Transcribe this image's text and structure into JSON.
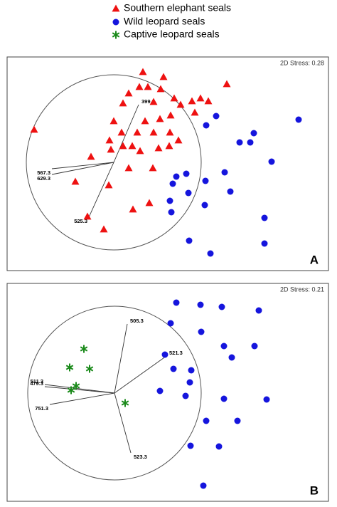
{
  "chart_data": [
    {
      "type": "scatter",
      "panel_label": "A",
      "annotation": "2D Stress: 0.28",
      "xlim": [
        0,
        452
      ],
      "ylim": [
        0,
        300
      ],
      "origin": {
        "x": 150,
        "y": 152
      },
      "series": [
        {
          "name": "Southern elephant seals",
          "color": "#ee1111",
          "marker": "triangle",
          "x": [
            191,
            220,
            309,
            186,
            198,
            216,
            235,
            260,
            272,
            283,
            244,
            171,
            206,
            163,
            264,
            230,
            215,
            150,
            194,
            206,
            183,
            229,
            38,
            161,
            144,
            241,
            146,
            176,
            213,
            228,
            187,
            118,
            163,
            171,
            205,
            96,
            143,
            200,
            177,
            113,
            136
          ],
          "y": [
            279,
            272,
            262,
            258,
            258,
            255,
            242,
            238,
            242,
            238,
            233,
            249,
            237,
            235,
            222,
            218,
            213,
            210,
            210,
            194,
            194,
            194,
            198,
            194,
            183,
            183,
            170,
            175,
            172,
            175,
            168,
            160,
            175,
            144,
            144,
            125,
            120,
            95,
            86,
            76,
            58
          ]
        },
        {
          "name": "Wild leopard seals",
          "color": "#1515dd",
          "marker": "circle",
          "x": [
            294,
            410,
            280,
            347,
            327,
            342,
            372,
            306,
            252,
            238,
            279,
            233,
            314,
            255,
            229,
            278,
            231,
            362,
            256,
            362,
            286
          ],
          "y": [
            217,
            212,
            204,
            193,
            180,
            180,
            153,
            138,
            136,
            132,
            126,
            122,
            111,
            109,
            98,
            92,
            82,
            74,
            42,
            38,
            24
          ]
        }
      ],
      "vectors": [
        {
          "label": "399.3",
          "x": 185,
          "y": 233
        },
        {
          "label": "567.3",
          "x": 63,
          "y": 143
        },
        {
          "label": "629.3",
          "x": 63,
          "y": 135
        },
        {
          "label": "525.3",
          "x": 115,
          "y": 75
        }
      ]
    },
    {
      "type": "scatter",
      "panel_label": "B",
      "annotation": "2D Stress: 0.21",
      "xlim": [
        0,
        452
      ],
      "ylim": [
        0,
        306
      ],
      "origin": {
        "x": 151,
        "y": 152
      },
      "series": [
        {
          "name": "Wild leopard seals",
          "color": "#1515dd",
          "marker": "circle",
          "x": [
            238,
            272,
            302,
            354,
            230,
            273,
            305,
            348,
            222,
            316,
            234,
            259,
            257,
            215,
            251,
            305,
            365,
            280,
            324,
            258,
            298,
            276
          ],
          "y": [
            279,
            276,
            273,
            268,
            250,
            238,
            218,
            218,
            206,
            202,
            186,
            184,
            167,
            155,
            148,
            144,
            143,
            113,
            113,
            78,
            77,
            22
          ]
        },
        {
          "name": "Captive leopard seals",
          "color": "#1a8a1a",
          "marker": "star",
          "x": [
            108,
            88,
            116,
            97,
            90,
            166
          ],
          "y": [
            214,
            188,
            186,
            162,
            156,
            138
          ]
        }
      ],
      "vectors": [
        {
          "label": "505.3",
          "x": 169,
          "y": 249
        },
        {
          "label": "521.3",
          "x": 224,
          "y": 204
        },
        {
          "label": "511.3",
          "x": 53,
          "y": 164
        },
        {
          "label": "479.3",
          "x": 53,
          "y": 161
        },
        {
          "label": "751.3",
          "x": 60,
          "y": 136
        },
        {
          "label": "523.3",
          "x": 174,
          "y": 68
        }
      ]
    }
  ]
}
